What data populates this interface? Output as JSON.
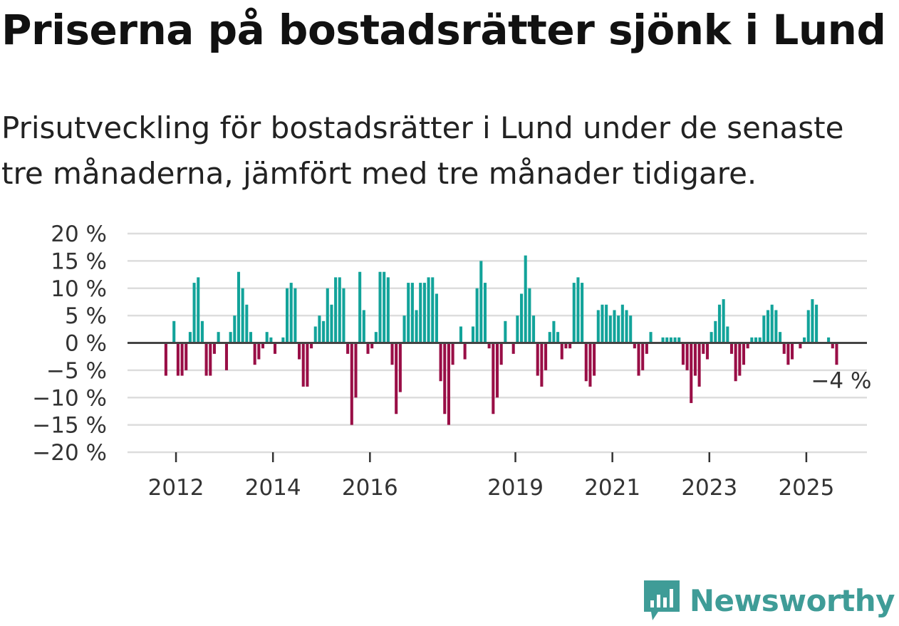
{
  "title": "Priserna på bostadsrätter sjönk i Lund",
  "subtitle": "Prisutveckling för bostadsrätter i Lund under de senaste tre månaderna, jämfört med tre månader tidigare.",
  "brand": {
    "name": "Newsworthy",
    "icon": "newsworthy-logo-icon",
    "color": "#3f9c97"
  },
  "colors": {
    "positive": "#12a39a",
    "negative": "#990e46",
    "zero_line": "#444444",
    "grid": "#dddddd"
  },
  "chart_data": {
    "type": "bar",
    "title": "Priserna på bostadsrätter sjönk i Lund",
    "xlabel": "",
    "ylabel": "",
    "ylim": [
      -20,
      20
    ],
    "y_ticks": [
      20,
      15,
      10,
      5,
      0,
      -5,
      -10,
      -15,
      -20
    ],
    "y_tick_labels": [
      "20 %",
      "15 %",
      "10 %",
      "5 %",
      "0 %",
      "−5 %",
      "−10 %",
      "−15 %",
      "−20 %"
    ],
    "x_ticks": [
      2012,
      2014,
      2016,
      2019,
      2021,
      2023,
      2025
    ],
    "x_tick_labels": [
      "2012",
      "2014",
      "2016",
      "2019",
      "2021",
      "2023",
      "2025"
    ],
    "start": {
      "year": 2011,
      "month": 10
    },
    "last_label": "−4 %",
    "values": [
      -6,
      0,
      4,
      -6,
      -6,
      -5,
      2,
      11,
      12,
      4,
      -6,
      -6,
      -2,
      2,
      0,
      -5,
      2,
      5,
      13,
      10,
      7,
      2,
      -4,
      -3,
      -1,
      2,
      1,
      -2,
      0,
      1,
      10,
      11,
      10,
      -3,
      -8,
      -8,
      -1,
      3,
      5,
      4,
      10,
      7,
      12,
      12,
      10,
      -2,
      -15,
      -10,
      13,
      6,
      -2,
      -1,
      2,
      13,
      13,
      12,
      -4,
      -13,
      -9,
      5,
      11,
      11,
      6,
      11,
      11,
      12,
      12,
      9,
      -7,
      -13,
      -15,
      -4,
      0,
      3,
      -3,
      0,
      3,
      10,
      15,
      11,
      -1,
      -13,
      -10,
      -4,
      4,
      0,
      -2,
      5,
      9,
      16,
      10,
      5,
      -6,
      -8,
      -5,
      2,
      4,
      2,
      -3,
      -1,
      -1,
      11,
      12,
      11,
      -7,
      -8,
      -6,
      6,
      7,
      7,
      5,
      6,
      5,
      7,
      6,
      5,
      -1,
      -6,
      -5,
      -2,
      2,
      0,
      0,
      1,
      1,
      1,
      1,
      1,
      -4,
      -5,
      -11,
      -6,
      -8,
      -2,
      -3,
      2,
      4,
      7,
      8,
      3,
      -2,
      -7,
      -6,
      -4,
      -1,
      1,
      1,
      1,
      5,
      6,
      7,
      6,
      2,
      -2,
      -4,
      -3,
      0,
      -1,
      1,
      6,
      8,
      7,
      0,
      0,
      1,
      -1,
      -4
    ]
  }
}
